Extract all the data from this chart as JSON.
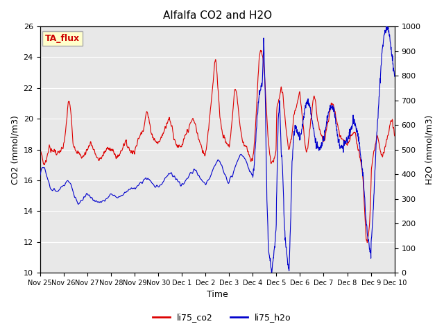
{
  "title": "Alfalfa CO2 and H2O",
  "xlabel": "Time",
  "ylabel_left": "CO2 (mmol/m3)",
  "ylabel_right": "H2O (mmol/m3)",
  "ylim_left": [
    10,
    26
  ],
  "ylim_right": [
    0,
    1000
  ],
  "yticks_left": [
    10,
    12,
    14,
    16,
    18,
    20,
    22,
    24,
    26
  ],
  "yticks_right": [
    0,
    100,
    200,
    300,
    400,
    500,
    600,
    700,
    800,
    900,
    1000
  ],
  "color_co2": "#dd0000",
  "color_h2o": "#0000cc",
  "background_color": "#e8e8e8",
  "tag_text": "TA_flux",
  "tag_bg": "#ffffcc",
  "tag_border": "#aaaaaa",
  "legend_co2": "li75_co2",
  "legend_h2o": "li75_h2o",
  "tick_labels": [
    "Nov 25",
    "Nov 26",
    "Nov 27",
    "Nov 28",
    "Nov 29",
    "Nov 30",
    "Dec 1",
    "Dec 2",
    "Dec 3",
    "Dec 4",
    "Dec 5",
    "Dec 6",
    "Dec 7",
    "Dec 8",
    "Dec 9",
    "Dec 10"
  ],
  "tick_positions": [
    0,
    1,
    2,
    3,
    4,
    5,
    6,
    7,
    8,
    9,
    10,
    11,
    12,
    13,
    14,
    15
  ]
}
